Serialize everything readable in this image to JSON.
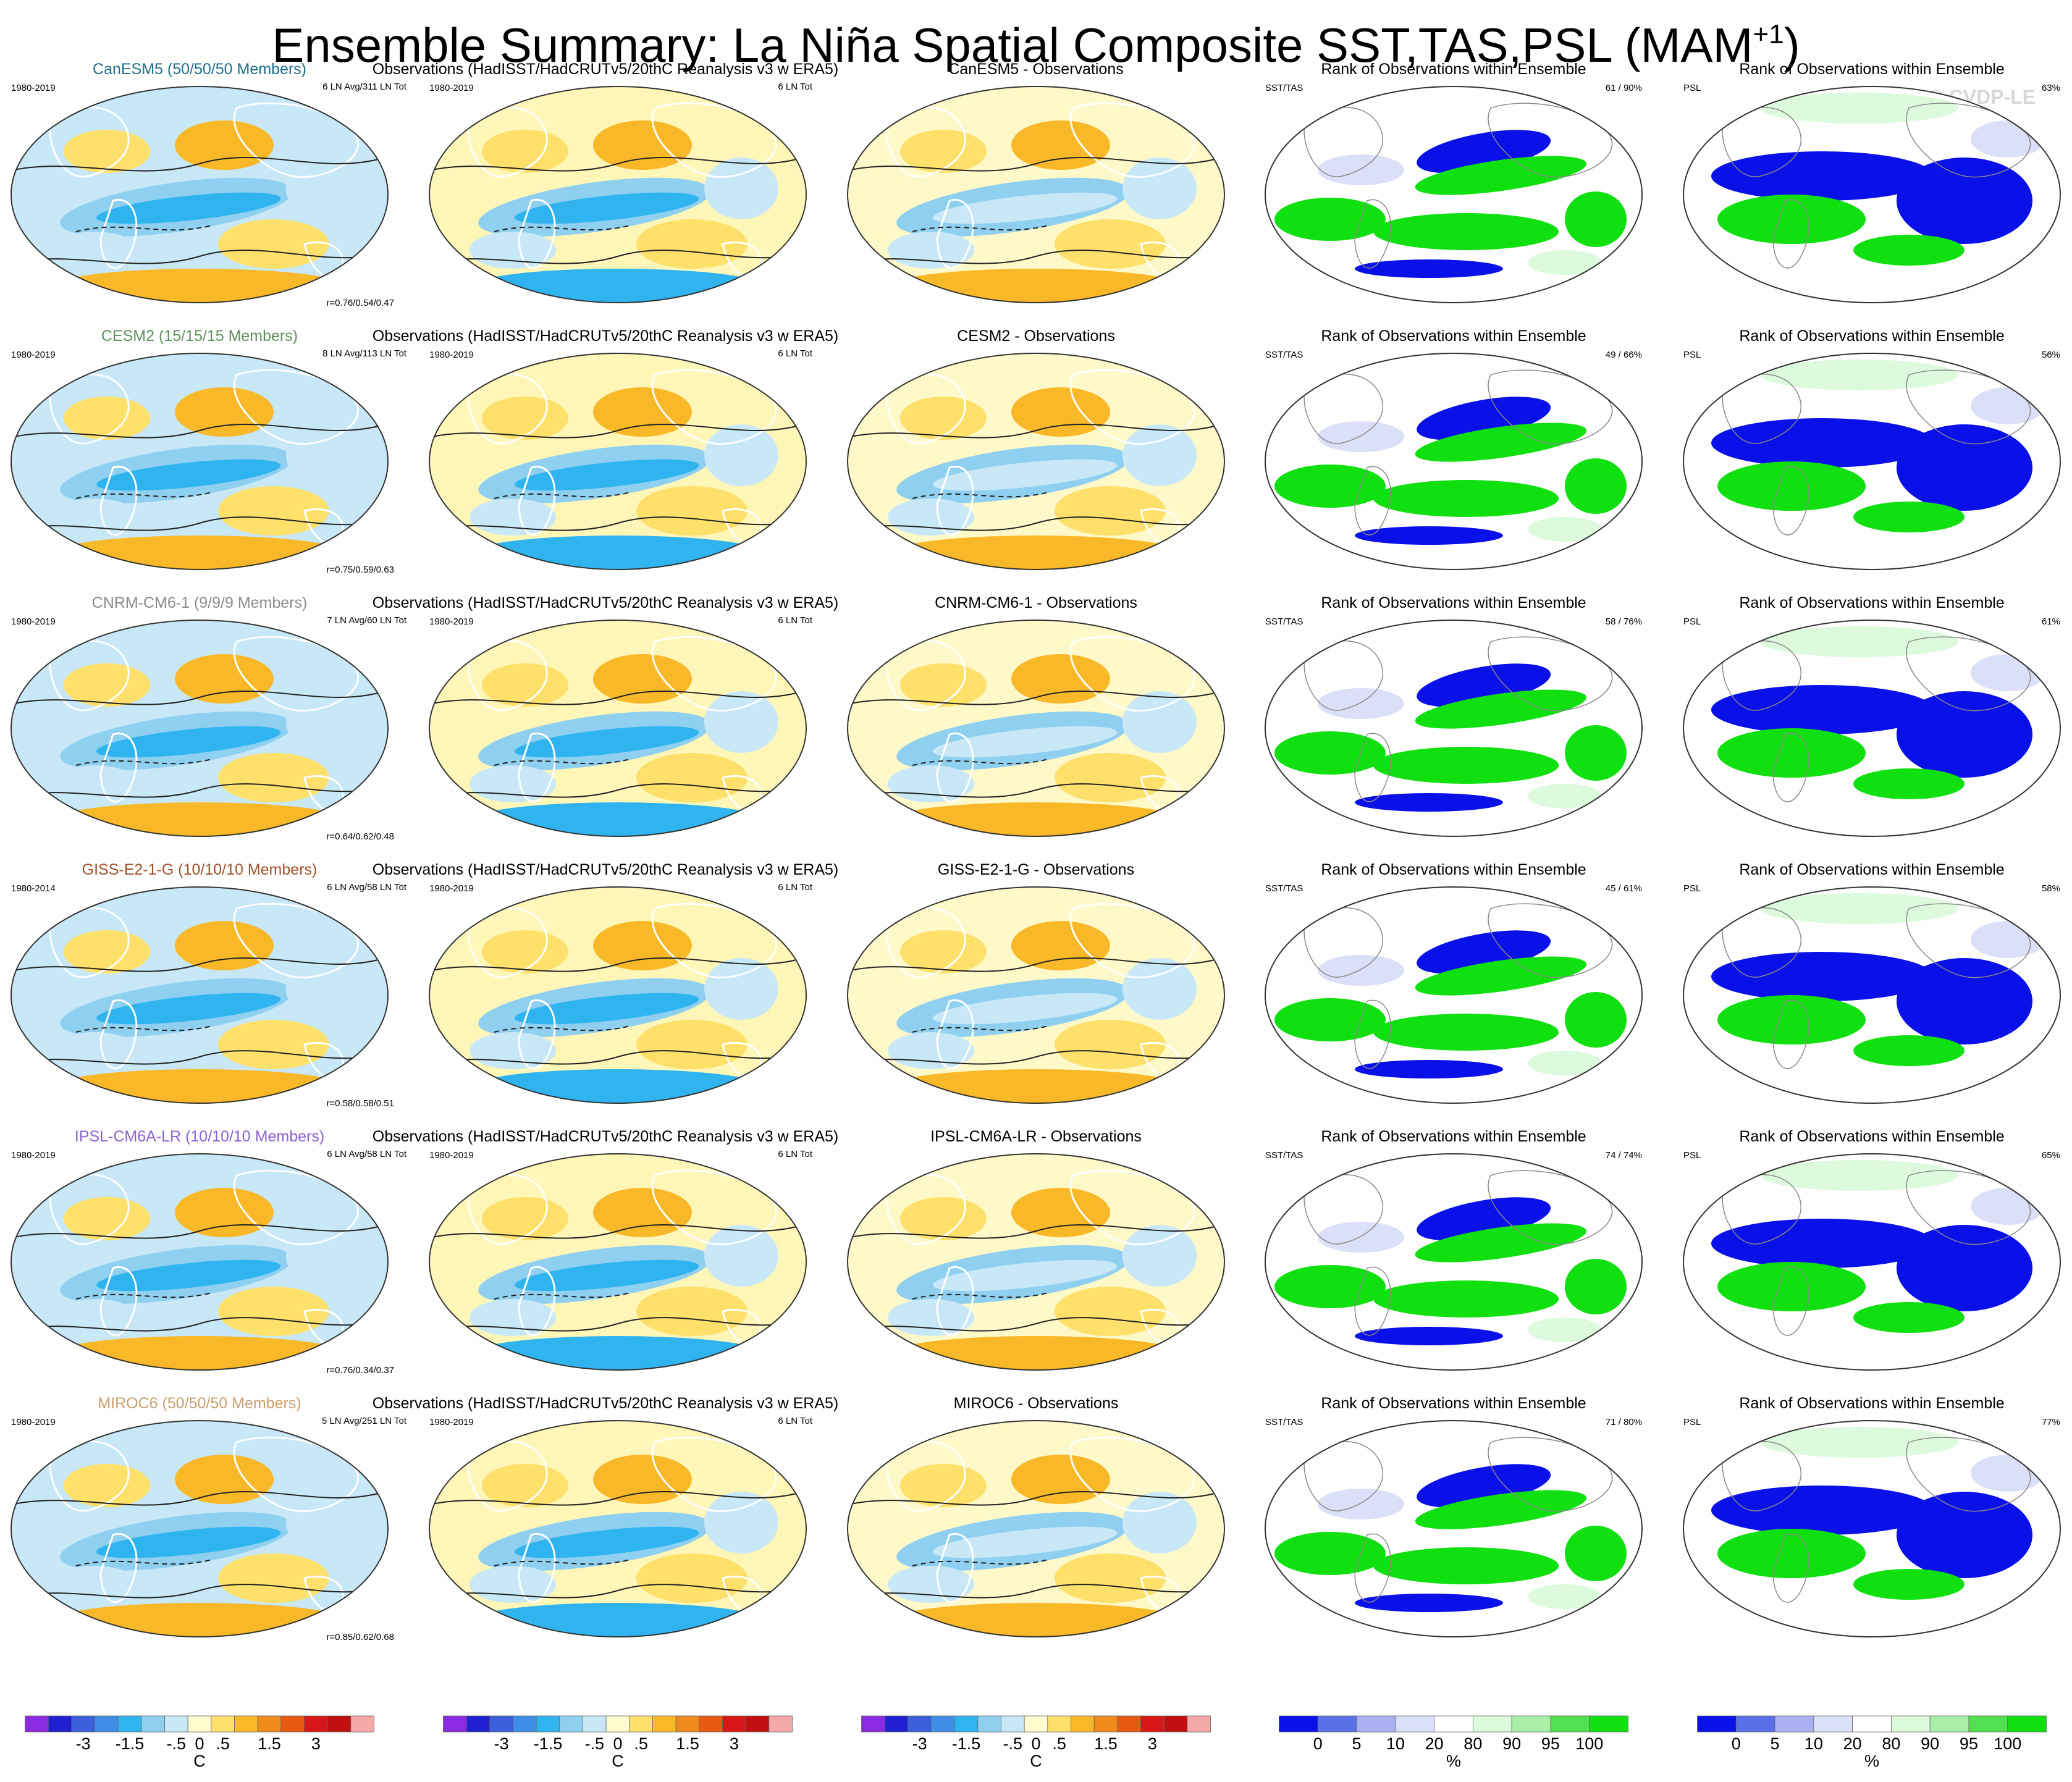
{
  "title": {
    "main": "Ensemble Summary: La Niña Spatial Composite SST,TAS,PSL (MAM",
    "superscript": "+1",
    "close": ")"
  },
  "watermark": "© CVDP-LE",
  "column_titles": {
    "obs": "Observations (HadISST/HadCRUTv5/20thC Reanalysis v3 w ERA5)",
    "diff_suffix": " - Observations",
    "rank": "Rank of Observations within Ensemble",
    "rank_left_sst": "SST/TAS",
    "rank_left_psl": "PSL",
    "obs_years": "1980-2019",
    "obs_count": "6 LN Tot"
  },
  "model_colors": {
    "CanESM5": "#1f6f8b",
    "CESM2": "#5f8f5f",
    "CNRM-CM6-1": "#8c8c8c",
    "GISS-E2-1-G": "#a0522d",
    "IPSL-CM6A-LR": "#8a63d2",
    "MIROC6": "#c8a070"
  },
  "rows": [
    {
      "model": "CanESM5",
      "label": "CanESM5 (50/50/50 Members)",
      "years": "1980-2019",
      "ln": "6 LN Avg/311 LN Tot",
      "r": "r=0.76/0.54/0.47",
      "sst_rank": "61 /  90%",
      "psl_rank": "63%"
    },
    {
      "model": "CESM2",
      "label": "CESM2 (15/15/15 Members)",
      "years": "1980-2019",
      "ln": "8 LN Avg/113 LN Tot",
      "r": "r=0.75/0.59/0.63",
      "sst_rank": "49 /  66%",
      "psl_rank": "56%"
    },
    {
      "model": "CNRM-CM6-1",
      "label": "CNRM-CM6-1 (9/9/9 Members)",
      "years": "1980-2019",
      "ln": "7 LN Avg/60 LN Tot",
      "r": "r=0.64/0.62/0.48",
      "sst_rank": "58 /  76%",
      "psl_rank": "61%"
    },
    {
      "model": "GISS-E2-1-G",
      "label": "GISS-E2-1-G (10/10/10 Members)",
      "years": "1980-2014",
      "ln": "6 LN Avg/58 LN Tot",
      "r": "r=0.58/0.58/0.51",
      "sst_rank": "45 /  61%",
      "psl_rank": "58%"
    },
    {
      "model": "IPSL-CM6A-LR",
      "label": "IPSL-CM6A-LR (10/10/10 Members)",
      "years": "1980-2019",
      "ln": "6 LN Avg/58 LN Tot",
      "r": "r=0.76/0.34/0.37",
      "sst_rank": "74 /  74%",
      "psl_rank": "65%"
    },
    {
      "model": "MIROC6",
      "label": "MIROC6 (50/50/50 Members)",
      "years": "1980-2019",
      "ln": "5 LN Avg/251 LN Tot",
      "r": "r=0.85/0.62/0.68",
      "sst_rank": "71 /  80%",
      "psl_rank": "77%"
    }
  ],
  "colorbars": {
    "temp": {
      "colors": [
        "#8a2be2",
        "#2020d0",
        "#3a5fdc",
        "#3f8fe8",
        "#2fb4f0",
        "#8fd0f0",
        "#c8e8f8",
        "#fffcd0",
        "#ffe06a",
        "#f8b828",
        "#f08a1a",
        "#e85a10",
        "#d81818",
        "#c01010",
        "#f4a8a8"
      ],
      "tick_labels": [
        "-3",
        "-1.5",
        "-.5",
        "0",
        ".5",
        "1.5",
        "3"
      ],
      "tick_positions": [
        2.5,
        4.5,
        6.5,
        7.5,
        8.5,
        10.5,
        12.5
      ],
      "unit": "C"
    },
    "rank": {
      "colors": [
        "#0a10e8",
        "#5a70e8",
        "#a8b0f0",
        "#dcdff8",
        "#ffffff",
        "#ddfadd",
        "#a8f0a8",
        "#50e050",
        "#10e010"
      ],
      "tick_labels": [
        "0",
        "5",
        "10",
        "20",
        "80",
        "90",
        "95",
        "100"
      ],
      "tick_positions": [
        1,
        2,
        3,
        4,
        5,
        6,
        7,
        8
      ],
      "unit": "%"
    }
  }
}
